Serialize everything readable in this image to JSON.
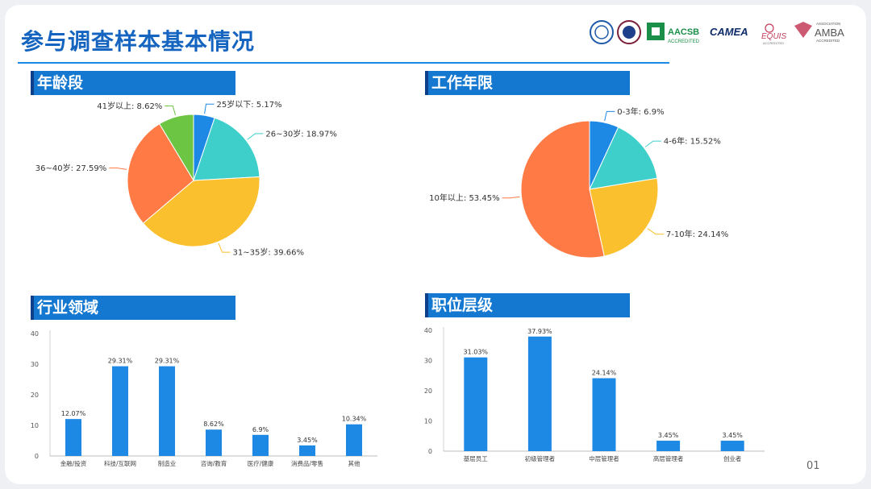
{
  "slide": {
    "title": "参与调查样本基本情况",
    "page_number": "01",
    "logos": [
      "AACSB",
      "ACCREDITED",
      "CAMEA",
      "EQUIS",
      "ACCREDITED",
      "ASSOCIATION",
      "AMBA",
      "ACCREDITED"
    ]
  },
  "sections": {
    "age": "年龄段",
    "tenure": "工作年限",
    "industry": "行业领域",
    "position": "职位层级"
  },
  "chart_data": [
    {
      "id": "age",
      "type": "pie",
      "title": "年龄段",
      "slices": [
        {
          "label": "25岁以下",
          "value": 5.17,
          "color": "#1e88e5"
        },
        {
          "label": "26~30岁",
          "value": 18.97,
          "color": "#3ecfcb"
        },
        {
          "label": "31~35岁",
          "value": 39.66,
          "color": "#fbc02d"
        },
        {
          "label": "36~40岁",
          "value": 27.59,
          "color": "#ff7a45"
        },
        {
          "label": "41岁以上",
          "value": 8.62,
          "color": "#6cc644"
        }
      ]
    },
    {
      "id": "tenure",
      "type": "pie",
      "title": "工作年限",
      "slices": [
        {
          "label": "0-3年",
          "value": 6.9,
          "color": "#1e88e5"
        },
        {
          "label": "4-6年",
          "value": 15.52,
          "color": "#3ecfcb"
        },
        {
          "label": "7-10年",
          "value": 24.14,
          "color": "#fbc02d"
        },
        {
          "label": "10年以上",
          "value": 53.45,
          "color": "#ff7a45"
        }
      ]
    },
    {
      "id": "industry",
      "type": "bar",
      "title": "行业领域",
      "categories": [
        "金融/投资",
        "科技/互联网",
        "制造业",
        "咨询/教育",
        "医疗/健康",
        "消费品/零售",
        "其他"
      ],
      "values": [
        12.07,
        29.31,
        29.31,
        8.62,
        6.9,
        3.45,
        10.34
      ],
      "data_labels": [
        "12.07%",
        "29.31%",
        "29.31%",
        "8.62%",
        "6.9%",
        "3.45%",
        "10.34%"
      ],
      "yticks": [
        "0",
        "10",
        "20",
        "30",
        "40"
      ],
      "ylim": [
        0,
        40
      ],
      "color": "#1e88e5"
    },
    {
      "id": "position",
      "type": "bar",
      "title": "职位层级",
      "categories": [
        "基层员工",
        "初级管理者",
        "中层管理者",
        "高层管理者",
        "创业者"
      ],
      "values": [
        31.03,
        37.93,
        24.14,
        3.45,
        3.45
      ],
      "data_labels": [
        "31.03%",
        "37.93%",
        "24.14%",
        "3.45%",
        "3.45%"
      ],
      "yticks": [
        "0",
        "10",
        "20",
        "30",
        "40"
      ],
      "ylim": [
        0,
        40
      ],
      "color": "#1e88e5"
    }
  ]
}
